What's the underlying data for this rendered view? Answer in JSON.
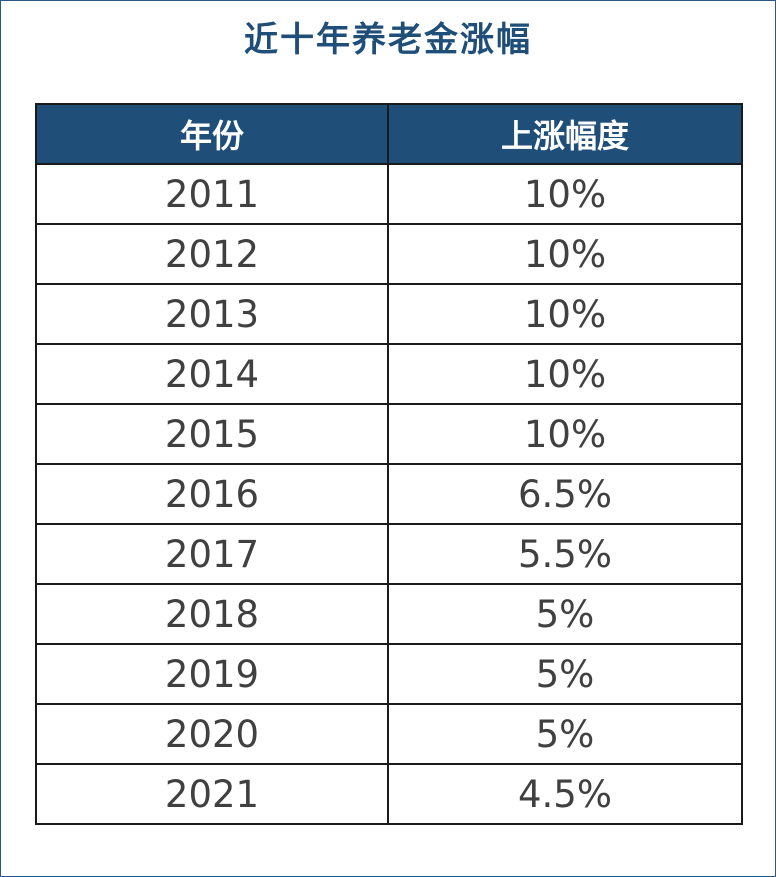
{
  "chart_data": {
    "type": "table",
    "title": "近十年养老金涨幅",
    "columns": [
      "年份",
      "上涨幅度"
    ],
    "rows": [
      [
        "2011",
        "10%"
      ],
      [
        "2012",
        "10%"
      ],
      [
        "2013",
        "10%"
      ],
      [
        "2014",
        "10%"
      ],
      [
        "2015",
        "10%"
      ],
      [
        "2016",
        "6.5%"
      ],
      [
        "2017",
        "5.5%"
      ],
      [
        "2018",
        "5%"
      ],
      [
        "2019",
        "5%"
      ],
      [
        "2020",
        "5%"
      ],
      [
        "2021",
        "4.5%"
      ]
    ],
    "header_color": "#1f4e79",
    "title_color": "#1f4e79"
  }
}
